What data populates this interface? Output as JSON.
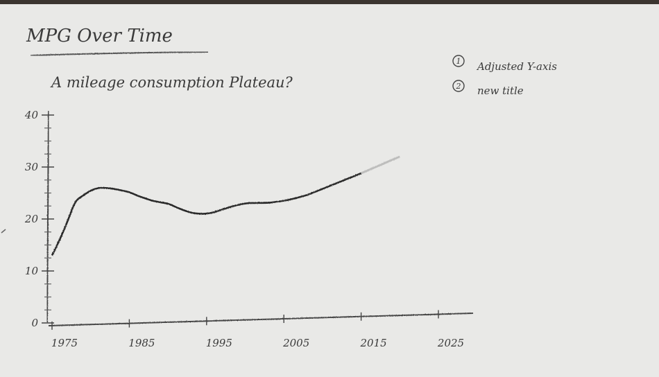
{
  "page": {
    "heading": "MPG Over Time",
    "note_1": "Adjusted Y-axis",
    "note_2": "new title",
    "note_1_marker": "1",
    "note_2_marker": "2"
  },
  "chart_data": {
    "type": "line",
    "title": "A mileage consumption Plateau?",
    "xlabel": "",
    "ylabel": "",
    "xlim": [
      1975,
      2025
    ],
    "ylim": [
      0,
      40
    ],
    "x_ticks": [
      "1975",
      "1985",
      "1995",
      "2005",
      "2015",
      "2025"
    ],
    "y_ticks": [
      "0",
      "10",
      "20",
      "30",
      "40"
    ],
    "grid": false,
    "series": [
      {
        "x": [
          1975,
          1976,
          1977,
          1978,
          1979,
          1980,
          1981,
          1982,
          1983,
          1984,
          1985,
          1986,
          1987,
          1988,
          1989,
          1990,
          1991,
          1992,
          1993,
          1994,
          1995,
          1996,
          1997,
          1998,
          1999,
          2000,
          2001,
          2002,
          2003,
          2004,
          2005,
          2006,
          2007,
          2008,
          2009,
          2010,
          2011,
          2012,
          2013,
          2014,
          2015
        ],
        "y": [
          13.0,
          16.0,
          19.5,
          23.5,
          24.5,
          25.5,
          26.0,
          26.0,
          25.8,
          25.5,
          25.2,
          24.5,
          24.0,
          23.5,
          23.2,
          23.0,
          22.3,
          21.7,
          21.2,
          21.0,
          21.0,
          21.3,
          21.8,
          22.3,
          22.7,
          23.0,
          23.1,
          23.1,
          23.1,
          23.3,
          23.5,
          23.8,
          24.2,
          24.6,
          25.2,
          25.8,
          26.4,
          27.0,
          27.6,
          28.2,
          28.8
        ]
      }
    ],
    "projection": {
      "x": [
        2015,
        2020
      ],
      "y": [
        28.8,
        32.0
      ]
    }
  }
}
